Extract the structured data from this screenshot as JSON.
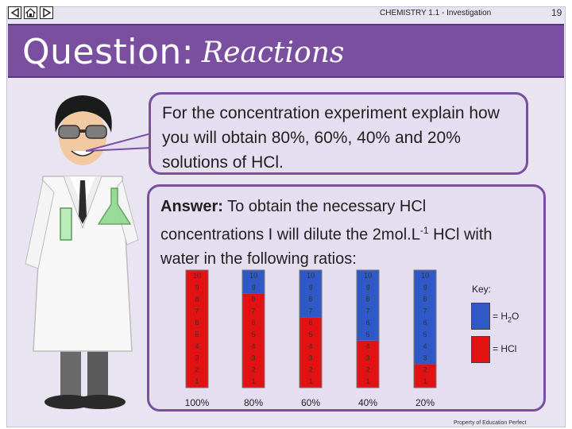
{
  "header": {
    "course": "CHEMISTRY 1.1 - Investigation",
    "page_number": "19",
    "nav": [
      {
        "name": "back-icon"
      },
      {
        "name": "home-icon"
      },
      {
        "name": "forward-icon"
      }
    ]
  },
  "banner": {
    "title": "Question:",
    "subtitle": "Reactions"
  },
  "question": {
    "text": "For the concentration experiment explain how you will obtain 80%, 60%, 40% and 20% solutions of HCl."
  },
  "answer": {
    "label": "Answer:",
    "text_before": " To obtain the necessary HCl concentrations I will dilute the 2mol.L",
    "superscript": "-1",
    "text_after": " HCl with water in the following ratios:"
  },
  "colors": {
    "water": "#2f59c6",
    "hcl": "#e21212",
    "accent": "#7b4fa0"
  },
  "chart_data": {
    "type": "bar",
    "categories": [
      "100%",
      "80%",
      "60%",
      "40%",
      "20%"
    ],
    "series": [
      {
        "name": "HCl",
        "values": [
          10,
          8,
          6,
          4,
          2
        ]
      },
      {
        "name": "H2O",
        "values": [
          0,
          2,
          4,
          6,
          8
        ]
      }
    ],
    "scale_ticks": [
      "1",
      "2",
      "3",
      "4",
      "5",
      "6",
      "7",
      "8",
      "9",
      "10"
    ],
    "ylim": [
      0,
      10
    ]
  },
  "key": {
    "title": "Key:",
    "water_label": "= H",
    "water_sub": "2",
    "water_suffix": "O",
    "hcl_label": "= HCl"
  },
  "footer": {
    "text": "Property of Education Perfect"
  }
}
